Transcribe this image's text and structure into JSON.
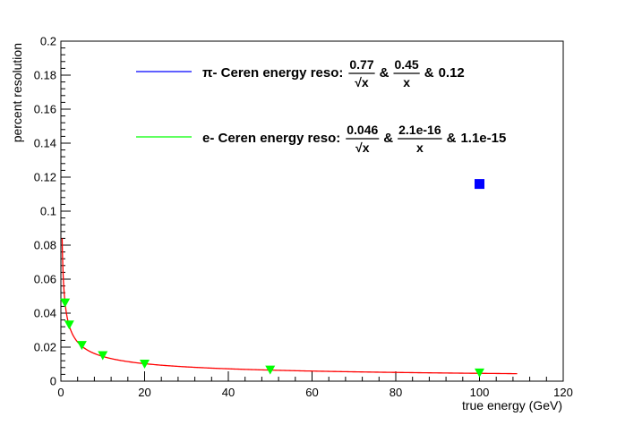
{
  "chart_data": {
    "type": "scatter",
    "xlabel": "true energy (GeV)",
    "ylabel": "percent resolution",
    "xlim": [
      0,
      120
    ],
    "ylim": [
      0,
      0.2
    ],
    "x_ticks": [
      "0",
      "20",
      "40",
      "60",
      "80",
      "100",
      "120"
    ],
    "y_ticks": [
      "0",
      "0.02",
      "0.04",
      "0.06",
      "0.08",
      "0.1",
      "0.12",
      "0.14",
      "0.16",
      "0.18",
      "0.2"
    ],
    "grid": false,
    "series": [
      {
        "color": "#0000ff",
        "marker": "square",
        "points": [
          {
            "x": 100,
            "y": 0.116
          }
        ]
      },
      {
        "color": "#00ff00",
        "marker": "triangle-down",
        "points": [
          {
            "x": 1,
            "y": 0.046
          },
          {
            "x": 2,
            "y": 0.033
          },
          {
            "x": 5,
            "y": 0.021
          },
          {
            "x": 10,
            "y": 0.015
          },
          {
            "x": 20,
            "y": 0.01
          },
          {
            "x": 50,
            "y": 0.0065
          },
          {
            "x": 100,
            "y": 0.0048
          }
        ]
      }
    ],
    "fit_curves": [
      {
        "color": "#ff0000",
        "x_range": [
          0.3,
          109
        ],
        "a": 0.046,
        "b": 2.1e-16,
        "c": 1.1e-15
      }
    ],
    "legend": {
      "placement": "top-right",
      "entries": [
        {
          "line_color": "#0000ff",
          "prefix": "π- Ceren energy reso:",
          "term1": "0.77",
          "term1_den": "√x",
          "sep1": "&",
          "term2": "0.45",
          "term2_den": "x",
          "sep2": "&",
          "term3": "0.12"
        },
        {
          "line_color": "#00ff00",
          "prefix": "e- Ceren energy reso:",
          "term1": "0.046",
          "term1_den": "√x",
          "sep1": "&",
          "term2": "2.1e-16",
          "term2_den": "x",
          "sep2": "&",
          "term3": "1.1e-15"
        }
      ]
    }
  }
}
